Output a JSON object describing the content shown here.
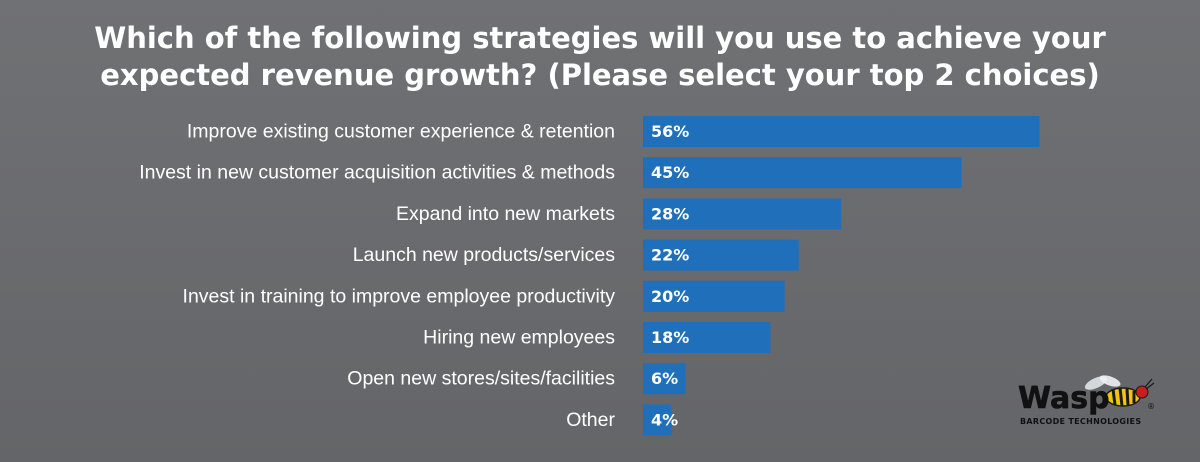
{
  "title": "Which of the following strategies will you use to achieve your expected revenue growth? (Please select your top 2 choices)",
  "colors": {
    "background": "#6b6c6f",
    "bar": "#1f6fba",
    "text": "#ffffff"
  },
  "logo": {
    "wordmark": "Wasp",
    "tagline": "BARCODE TECHNOLOGIES",
    "registered": "®",
    "icon": "wasp-icon"
  },
  "chart_data": {
    "type": "bar",
    "orientation": "horizontal",
    "title": "Which of the following strategies will you use to achieve your expected revenue growth? (Please select your top 2 choices)",
    "categories": [
      "Improve existing customer experience & retention",
      "Invest in new customer acquisition activities & methods",
      "Expand into new markets",
      "Launch new products/services",
      "Invest in training to improve employee productivity",
      "Hiring new employees",
      "Open new stores/sites/facilities",
      "Other"
    ],
    "values": [
      56,
      45,
      28,
      22,
      20,
      18,
      6,
      4
    ],
    "value_labels": [
      "56%",
      "45%",
      "28%",
      "22%",
      "20%",
      "18%",
      "6%",
      "4%"
    ],
    "unit": "%",
    "xlabel": "",
    "ylabel": "",
    "grid": false,
    "legend": "none"
  }
}
